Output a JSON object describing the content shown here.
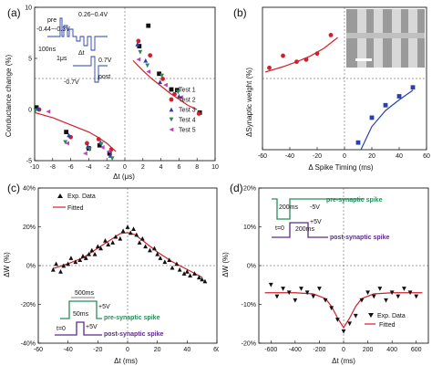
{
  "figure": {
    "panels": {
      "a": {
        "label": "(a)",
        "ylabel": "Conductance change (%)",
        "xlabel": "Δt (μs)",
        "inset": {
          "pre": "pre",
          "post": "post",
          "v1": "0.26~0.4V",
          "v2": "-0.44~-0.3V",
          "t1": "100ns",
          "t2": "1μs",
          "dt": "Δt",
          "v3": "0.7V",
          "v4": "-0.7V"
        },
        "legend": [
          "Test 1",
          "Test 2",
          "Test 3",
          "Test 4",
          "Test 5"
        ]
      },
      "b": {
        "label": "(b)",
        "ylabel": "ΔSynaptic weight (%)",
        "xlabel": "Δ Spike Timing (ms)"
      },
      "c": {
        "label": "(c)",
        "ylabel": "ΔW (%)",
        "xlabel": "Δt (ms)",
        "legend": [
          "Exp. Data",
          "Fitted"
        ],
        "inset": {
          "w1": "500ms",
          "v1": "+5V",
          "pre": "pre-synaptic spike",
          "w2": "50ms",
          "v2": "+5V",
          "t0": "t=0",
          "post": "post-synaptic spike"
        }
      },
      "d": {
        "label": "(d)",
        "ylabel": "ΔW (%)",
        "xlabel": "Δt (ms)",
        "legend": [
          "Exp. Data",
          "Fitted"
        ],
        "inset": {
          "w1": "200ms",
          "v1": "-5V",
          "pre": "pre-synaptic spike",
          "w2": "200ms",
          "v2": "+5V",
          "t0": "t=0",
          "post": "post-synaptic spike"
        }
      }
    }
  },
  "chart_data": [
    {
      "type": "scatter",
      "panel": "a",
      "xlim": [
        -10,
        10
      ],
      "ylim": [
        -5,
        10
      ],
      "xticks": [
        -10,
        -8,
        -6,
        -4,
        -2,
        0,
        2,
        4,
        6,
        8,
        10
      ],
      "yticks": [
        -5,
        0,
        5,
        10
      ],
      "xlabel": "Δt (μs)",
      "ylabel": "Conductance change (%)",
      "colors": {
        "Test 1": "#111111",
        "Test 2": "#d0202a",
        "Test 3": "#2a3fb0",
        "Test 4": "#2a8a5a",
        "Test 5": "#c040c0"
      },
      "series": [
        {
          "name": "Test 1",
          "x": [
            -9.8,
            -6.5,
            -4,
            -2.8,
            -1.7,
            1.6,
            2.6,
            3.8,
            5.8,
            8.3
          ],
          "y": [
            0.2,
            -2.2,
            -3.8,
            -3.5,
            -4.3,
            6.2,
            8.2,
            3.5,
            1.9,
            -0.3
          ]
        },
        {
          "name": "Test 2",
          "x": [
            -9.5,
            -6,
            -4.2,
            -2.9,
            -1.5,
            1.5,
            2.8,
            4.2,
            5.5,
            8.2
          ],
          "y": [
            0.0,
            -2.7,
            -3.3,
            -2.9,
            -3.9,
            6.7,
            5.3,
            3.0,
            1.5,
            -0.4
          ]
        },
        {
          "name": "Test 3",
          "x": [
            -9.6,
            -6.2,
            -4.1,
            -2.7,
            -1.6,
            1.4,
            2.3,
            3.9,
            6.0
          ],
          "y": [
            0.1,
            -2.5,
            -3.6,
            -3.2,
            -4.5,
            6.4,
            4.8,
            2.7,
            1.3
          ]
        },
        {
          "name": "Test 4",
          "x": [
            -9.9,
            -6.6,
            -3.9,
            -2.6,
            -1.4,
            1.7,
            2.5,
            4.1,
            5.9
          ],
          "y": [
            -0.1,
            -3.2,
            -3.9,
            -3.4,
            -4.8,
            5.6,
            4.3,
            3.3,
            1.7
          ]
        },
        {
          "name": "Test 5",
          "x": [
            -8.5,
            -6.4,
            -4.4,
            -2.5,
            -1.8,
            1.5,
            2.6,
            4.5,
            6.2
          ],
          "y": [
            -0.2,
            -3.3,
            -4.3,
            -3.7,
            -4.1,
            4.9,
            3.7,
            2.4,
            1.2
          ]
        }
      ],
      "fit": {
        "color": "#d0202a",
        "negative": {
          "x": [
            -10,
            -8,
            -6,
            -4,
            -3,
            -2,
            -1
          ],
          "y": [
            -0.3,
            -0.8,
            -1.5,
            -2.2,
            -2.7,
            -3.3,
            -4.1
          ]
        },
        "positive": {
          "x": [
            0.9,
            2,
            3,
            4,
            5,
            6,
            7,
            8
          ],
          "y": [
            4.8,
            3.8,
            3.0,
            2.3,
            1.6,
            1.0,
            0.4,
            0.0
          ]
        }
      }
    },
    {
      "type": "scatter",
      "panel": "b",
      "xlim": [
        -60,
        60
      ],
      "ylim": [
        -20,
        20
      ],
      "xticks": [
        -60,
        -40,
        -20,
        0,
        20,
        40,
        60
      ],
      "xlabel": "Δ Spike Timing (ms)",
      "ylabel": "ΔSynaptic weight (%)",
      "series": [
        {
          "name": "",
          "color": "#d0202a",
          "marker": "circle",
          "x": [
            -55,
            -45,
            -35,
            -28,
            -20,
            -10
          ],
          "y": [
            3.0,
            6.4,
            4.7,
            5.3,
            7.0,
            12.2
          ]
        },
        {
          "name": "",
          "color": "#2a3fb0",
          "marker": "square",
          "x": [
            10,
            20,
            30,
            40,
            50
          ],
          "y": [
            -18.0,
            -11.0,
            -7.5,
            -5.0,
            -2.5
          ]
        }
      ],
      "fit": [
        {
          "color": "#d0202a",
          "x": [
            -58,
            -45,
            -35,
            -25,
            -15,
            -5
          ],
          "y": [
            1.8,
            3.3,
            4.7,
            6.3,
            8.5,
            11.5
          ]
        },
        {
          "color": "#2a3fb0",
          "x": [
            12,
            20,
            30,
            40,
            50
          ],
          "y": [
            -20,
            -13.5,
            -9.0,
            -6.0,
            -3.3
          ]
        }
      ]
    },
    {
      "type": "scatter",
      "panel": "c",
      "xlim": [
        -60,
        60
      ],
      "ylim": [
        -40,
        40
      ],
      "xticks": [
        -60,
        -40,
        -20,
        0,
        20,
        40,
        60
      ],
      "yticks": [
        -40,
        -20,
        0,
        20,
        40
      ],
      "ytick_labels": [
        "-40%",
        "-20%",
        "0%",
        "20%",
        "40%"
      ],
      "xlabel": "Δt (ms)",
      "ylabel": "ΔW (%)",
      "series": [
        {
          "name": "Exp. Data",
          "color": "#111111",
          "marker": "triangle",
          "x": [
            -50,
            -48,
            -45,
            -43,
            -40,
            -38,
            -35,
            -32,
            -30,
            -28,
            -26,
            -24,
            -22,
            -20,
            -18,
            -15,
            -13,
            -10,
            -8,
            -5,
            -3,
            0,
            2,
            4,
            6,
            8,
            10,
            12,
            15,
            18,
            20,
            22,
            25,
            28,
            30,
            33,
            35,
            38,
            40,
            42,
            45,
            48,
            50,
            52
          ],
          "y": [
            -2,
            1,
            -3,
            0,
            1,
            4,
            2,
            3,
            5,
            4,
            6,
            8,
            6,
            10,
            9,
            13,
            11,
            12,
            15,
            14,
            18,
            20,
            17,
            19,
            16,
            12,
            14,
            10,
            8,
            9,
            6,
            4,
            2,
            3,
            -1,
            1,
            -2,
            -4,
            -3,
            -5,
            -4,
            -6,
            -7,
            -8
          ]
        },
        {
          "name": "Fitted",
          "color": "#d0202a",
          "marker": "line"
        }
      ],
      "fit": {
        "color": "#d0202a",
        "x": [
          -50,
          -40,
          -30,
          -20,
          -10,
          -5,
          0,
          5,
          10,
          20,
          30,
          40,
          50
        ],
        "y": [
          -1.5,
          1,
          4,
          9,
          14,
          16.5,
          17,
          16,
          13,
          7,
          2,
          -2,
          -6
        ]
      }
    },
    {
      "type": "scatter",
      "panel": "d",
      "xlim": [
        -700,
        700
      ],
      "ylim": [
        -20,
        20
      ],
      "xticks": [
        -600,
        -400,
        -200,
        0,
        200,
        400,
        600
      ],
      "yticks": [
        -20,
        -10,
        0,
        10,
        20
      ],
      "ytick_labels": [
        "-20%",
        "-10%",
        "0%",
        "10%",
        "20%"
      ],
      "xlabel": "Δt (ms)",
      "ylabel": "ΔW (%)",
      "series": [
        {
          "name": "Exp. Data",
          "color": "#111111",
          "marker": "triangle-down",
          "x": [
            -600,
            -550,
            -500,
            -450,
            -400,
            -350,
            -300,
            -250,
            -200,
            -150,
            -100,
            -50,
            0,
            50,
            100,
            150,
            200,
            250,
            300,
            350,
            400,
            450,
            500,
            550,
            600
          ],
          "y": [
            -5,
            -8,
            -6,
            -7,
            -9,
            -6,
            -7,
            -8,
            -6,
            -9,
            -11,
            -14,
            -17,
            -15,
            -13,
            -9,
            -7,
            -8,
            -6,
            -9,
            -7,
            -8,
            -6,
            -7,
            -8
          ]
        },
        {
          "name": "Fitted",
          "color": "#d0202a",
          "marker": "line"
        }
      ],
      "fit": {
        "color": "#d0202a",
        "x": [
          -650,
          -400,
          -250,
          -150,
          -100,
          -50,
          0,
          50,
          100,
          150,
          250,
          400,
          650
        ],
        "y": [
          -7,
          -7,
          -7.3,
          -8.5,
          -10.5,
          -13.5,
          -16,
          -13.5,
          -10.5,
          -8.5,
          -7.3,
          -7,
          -7
        ]
      }
    }
  ]
}
